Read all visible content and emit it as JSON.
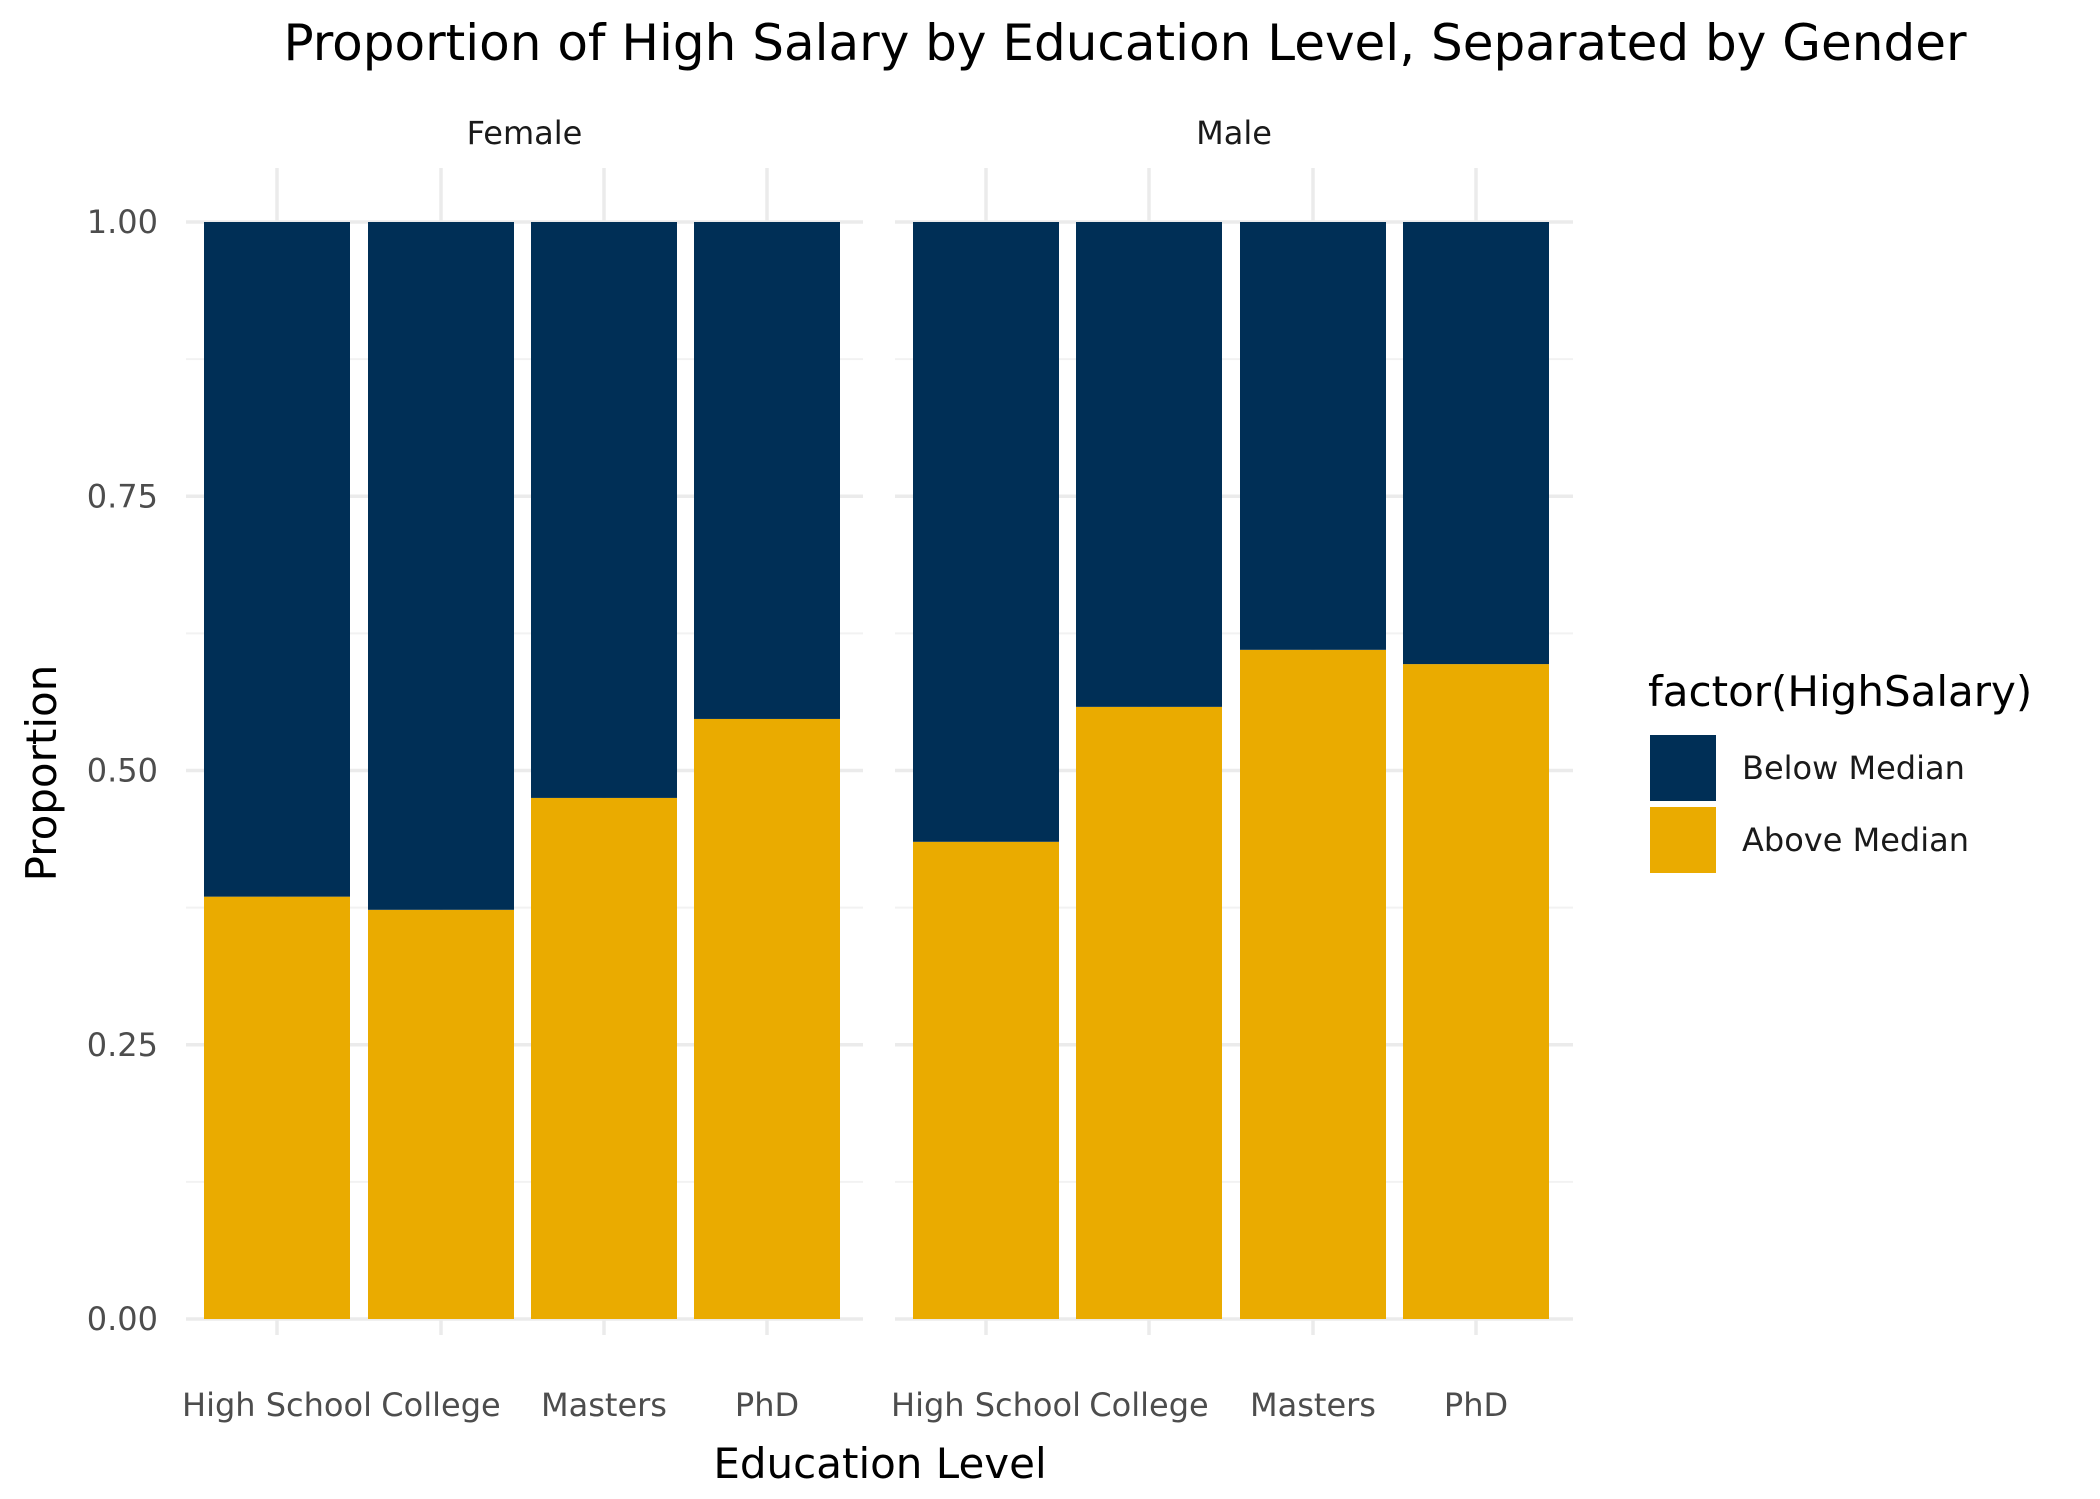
{
  "chart_data": {
    "type": "bar",
    "stacked": true,
    "title": "Proportion of High Salary by Education Level, Separated by Gender",
    "xlabel": "Education Level",
    "ylabel": "Proportion",
    "ylim": [
      0,
      1
    ],
    "yticks": [
      "0.00",
      "0.25",
      "0.50",
      "0.75",
      "1.00"
    ],
    "categories": [
      "High School",
      "College",
      "Masters",
      "PhD"
    ],
    "legend": {
      "title": "factor(HighSalary)",
      "placement": "right",
      "entries": [
        {
          "label": "Below Median",
          "color": "#002F56"
        },
        {
          "label": "Above Median",
          "color": "#EAAB00"
        }
      ]
    },
    "facets": [
      {
        "name": "Female",
        "series": [
          {
            "name": "Above Median",
            "values": [
              0.385,
              0.373,
              0.475,
              0.547
            ]
          },
          {
            "name": "Below Median",
            "values": [
              0.615,
              0.627,
              0.525,
              0.453
            ]
          }
        ]
      },
      {
        "name": "Male",
        "series": [
          {
            "name": "Above Median",
            "values": [
              0.435,
              0.558,
              0.61,
              0.597
            ]
          },
          {
            "name": "Below Median",
            "values": [
              0.565,
              0.442,
              0.39,
              0.403
            ]
          }
        ]
      }
    ],
    "grid": true
  }
}
